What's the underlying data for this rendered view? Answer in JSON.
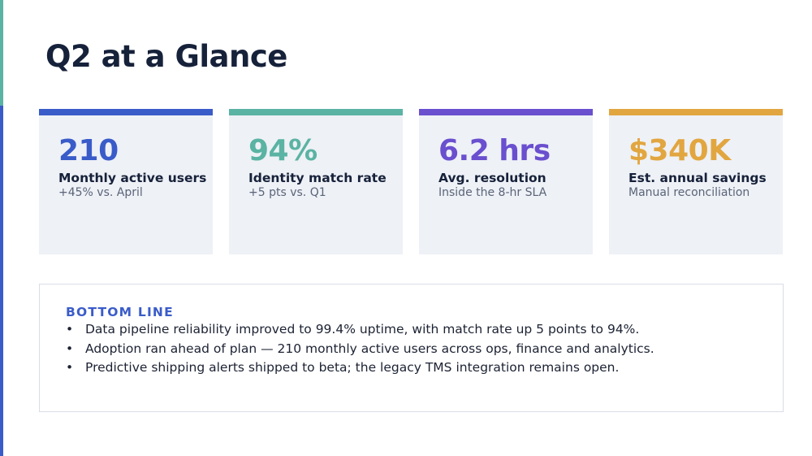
{
  "title": "Q2 at a Glance",
  "colors": {
    "accent_teal": "#5ab3a3",
    "accent_blue": "#3a5cc9",
    "text_dark": "#16213a",
    "text_muted": "#5a6478",
    "card_bg": "#eef1f6"
  },
  "kpis": [
    {
      "value": "210",
      "label": "Monthly active users",
      "sub": "+45% vs. April",
      "color": "#3a5cc9"
    },
    {
      "value": "94%",
      "label": "Identity match rate",
      "sub": "+5 pts vs. Q1",
      "color": "#5ab3a3"
    },
    {
      "value": "6.2 hrs",
      "label": "Avg. resolution",
      "sub": "Inside the 8-hr SLA",
      "color": "#6a4fcf"
    },
    {
      "value": "$340K",
      "label": "Est. annual savings",
      "sub": "Manual reconciliation",
      "color": "#e2a640"
    }
  ],
  "bottom_line": {
    "heading": "BOTTOM LINE",
    "heading_color": "#3a5cc9",
    "bullet": "•",
    "items": [
      "Data pipeline reliability improved to 99.4% uptime, with match rate up 5 points to 94%.",
      "Adoption ran ahead of plan — 210 monthly active users across ops, finance and analytics.",
      "Predictive shipping alerts shipped to beta; the legacy TMS integration remains open."
    ]
  }
}
